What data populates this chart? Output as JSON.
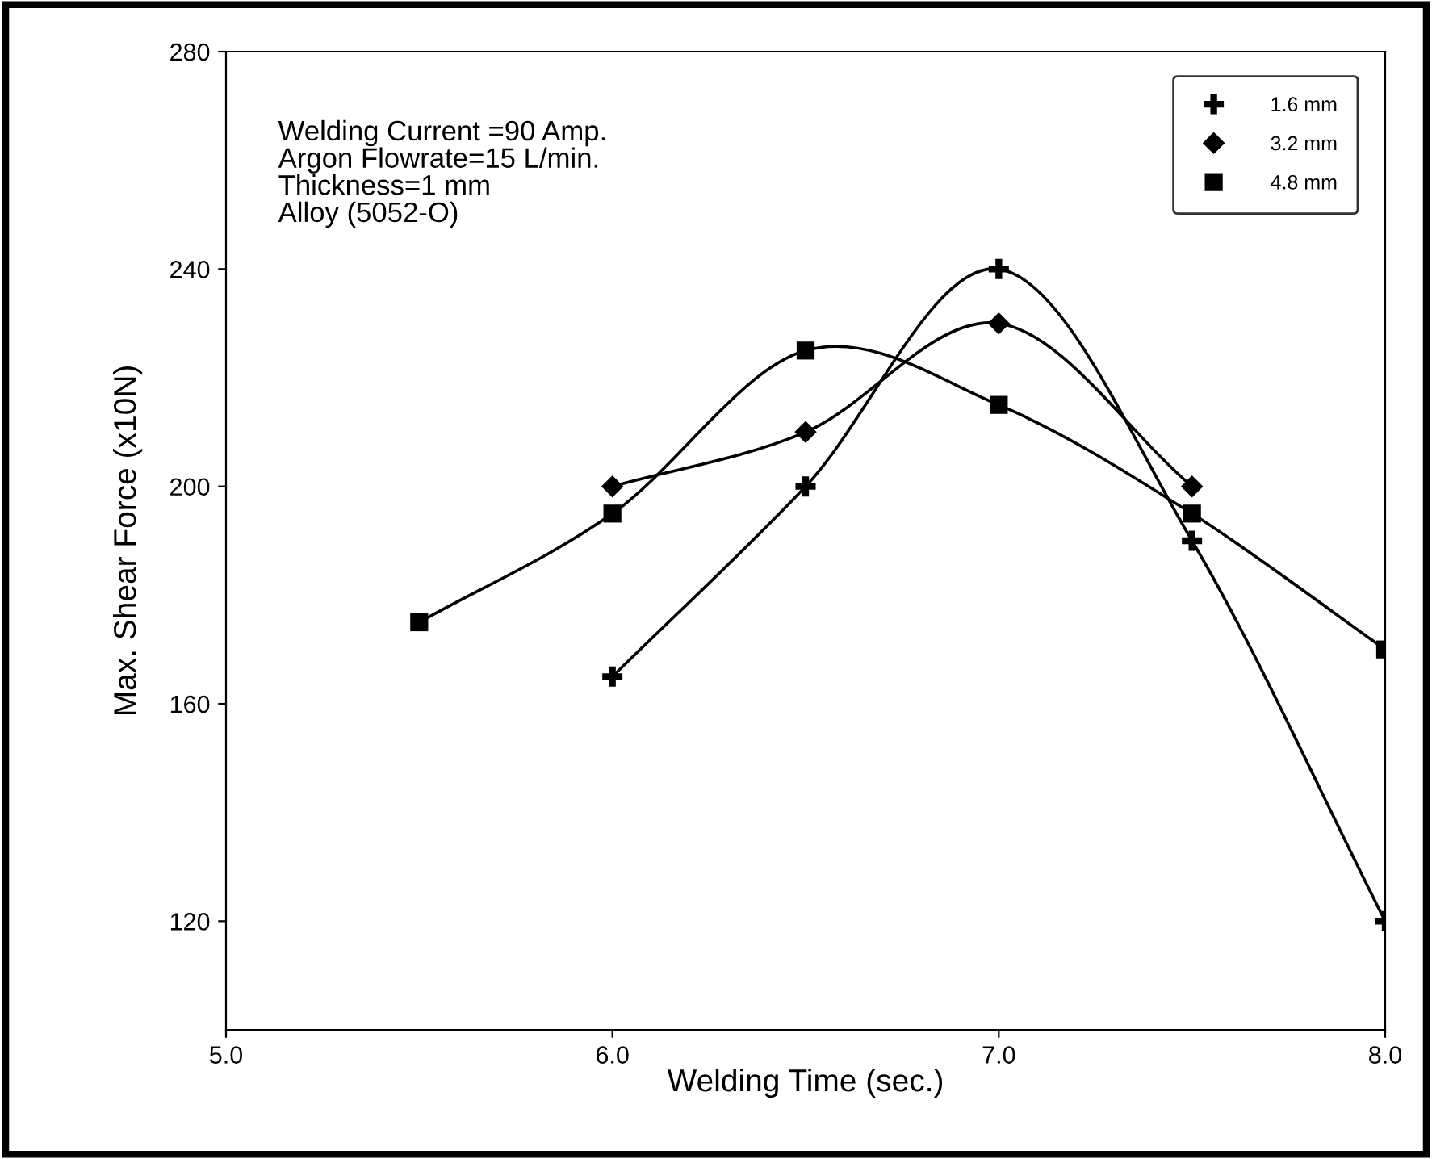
{
  "chart_data": {
    "type": "line",
    "xlabel": "Welding Time (sec.)",
    "ylabel": "Max. Shear Force (x10N)",
    "xlim": [
      5.0,
      8.0
    ],
    "xticks": [
      {
        "value": 5,
        "label": "5.0"
      },
      {
        "value": 6,
        "label": "6.0"
      },
      {
        "value": 7,
        "label": "7.0"
      },
      {
        "value": 8,
        "label": "8.0"
      }
    ],
    "ylim": [
      100,
      280
    ],
    "yticks": [
      120,
      160,
      200,
      240,
      280
    ],
    "grid": false,
    "legend": "top right",
    "line_style": "solid",
    "annotations": [
      "Welding Current =90 Amp.",
      "Argon Flowrate=15 L/min.",
      "Thickness=1 mm",
      "Alloy (5052-O)"
    ],
    "series": [
      {
        "name": "1.6 mm",
        "color": "#000000",
        "marker": "cross",
        "x": [
          6.0,
          6.5,
          7.0,
          7.5,
          8.0
        ],
        "values": [
          165,
          200,
          240,
          190,
          120
        ]
      },
      {
        "name": "3.2 mm",
        "color": "#000000",
        "marker": "diamond",
        "x": [
          6.0,
          6.5,
          7.0,
          7.5
        ],
        "values": [
          200,
          210,
          230,
          200
        ]
      },
      {
        "name": "4.8 mm",
        "color": "#000000",
        "marker": "square",
        "x": [
          5.5,
          6.0,
          6.5,
          7.0,
          7.5,
          8.0
        ],
        "values": [
          175,
          195,
          225,
          215,
          195,
          170
        ]
      }
    ]
  }
}
